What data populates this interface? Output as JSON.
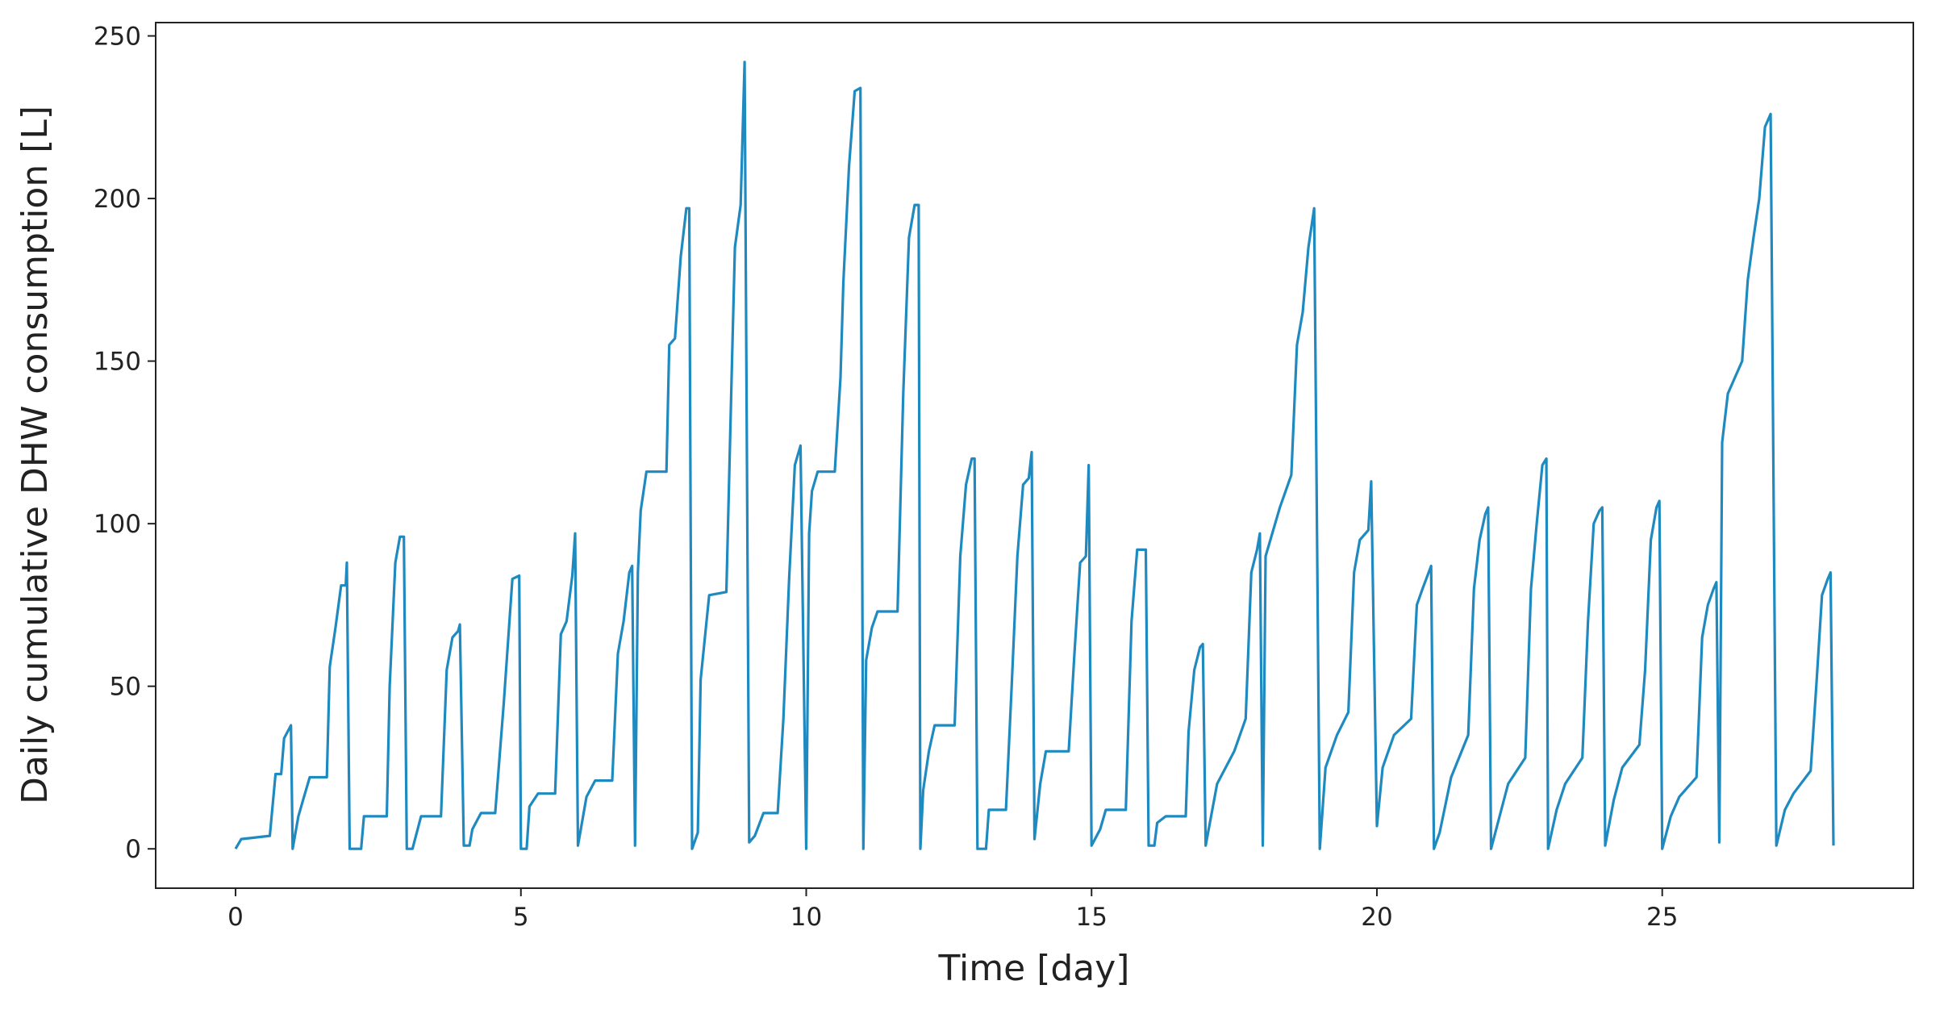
{
  "chart_data": {
    "type": "line",
    "xlabel": "Time [day]",
    "ylabel": "Daily cumulative DHW consumption [L]",
    "xlim": [
      -1.4,
      29.4
    ],
    "ylim": [
      -12.1,
      254.1
    ],
    "xticks": [
      0,
      5,
      10,
      15,
      20,
      25
    ],
    "yticks": [
      0,
      50,
      100,
      150,
      200,
      250
    ],
    "grid": false,
    "x": [
      0,
      0.1,
      0.6,
      0.7,
      0.8,
      0.85,
      0.97,
      1.0,
      1.1,
      1.2,
      1.3,
      1.6,
      1.65,
      1.75,
      1.85,
      1.93,
      1.95,
      2.0,
      2.2,
      2.25,
      2.65,
      2.7,
      2.8,
      2.88,
      2.95,
      3.0,
      3.1,
      3.25,
      3.6,
      3.7,
      3.8,
      3.9,
      3.93,
      4.0,
      4.1,
      4.15,
      4.3,
      4.55,
      4.7,
      4.85,
      4.97,
      5.0,
      5.1,
      5.15,
      5.3,
      5.6,
      5.7,
      5.8,
      5.9,
      5.95,
      6.0,
      6.15,
      6.3,
      6.6,
      6.7,
      6.8,
      6.9,
      6.95,
      7.0,
      7.05,
      7.1,
      7.2,
      7.55,
      7.6,
      7.7,
      7.8,
      7.9,
      7.95,
      8.0,
      8.1,
      8.15,
      8.3,
      8.6,
      8.7,
      8.75,
      8.85,
      8.92,
      9.0,
      9.1,
      9.25,
      9.5,
      9.6,
      9.7,
      9.8,
      9.9,
      10.0,
      10.05,
      10.1,
      10.2,
      10.5,
      10.6,
      10.65,
      10.75,
      10.85,
      10.95,
      11.0,
      11.05,
      11.15,
      11.25,
      11.6,
      11.7,
      11.8,
      11.9,
      11.97,
      12.0,
      12.05,
      12.15,
      12.25,
      12.6,
      12.7,
      12.8,
      12.9,
      12.95,
      13.0,
      13.15,
      13.2,
      13.5,
      13.6,
      13.7,
      13.8,
      13.9,
      13.95,
      14.0,
      14.1,
      14.2,
      14.6,
      14.7,
      14.8,
      14.9,
      14.95,
      15.0,
      15.15,
      15.25,
      15.6,
      15.7,
      15.8,
      15.95,
      16.0,
      16.1,
      16.15,
      16.3,
      16.65,
      16.7,
      16.8,
      16.9,
      16.95,
      17.0,
      17.2,
      17.5,
      17.7,
      17.8,
      17.9,
      17.95,
      18.0,
      18.05,
      18.3,
      18.5,
      18.6,
      18.7,
      18.8,
      18.9,
      19.0,
      19.1,
      19.3,
      19.5,
      19.6,
      19.7,
      19.85,
      19.9,
      20.0,
      20.1,
      20.3,
      20.6,
      20.7,
      20.8,
      20.95,
      21.0,
      21.1,
      21.3,
      21.6,
      21.7,
      21.8,
      21.9,
      21.95,
      22.0,
      22.15,
      22.3,
      22.6,
      22.7,
      22.8,
      22.9,
      22.97,
      23.0,
      23.15,
      23.3,
      23.6,
      23.7,
      23.8,
      23.9,
      23.95,
      24.0,
      24.15,
      24.3,
      24.6,
      24.7,
      24.8,
      24.9,
      24.95,
      25.0,
      25.15,
      25.3,
      25.6,
      25.7,
      25.8,
      25.9,
      25.95,
      26.0,
      26.05,
      26.15,
      26.4,
      26.5,
      26.6,
      26.7,
      26.8,
      26.9,
      27.0,
      27.15,
      27.3,
      27.6,
      27.7,
      27.8,
      27.9,
      27.95,
      28.0
    ],
    "series": [
      {
        "color": "#1f8ac0",
        "values": [
          0,
          3,
          4,
          23,
          23,
          34,
          38,
          0,
          10,
          16,
          22,
          22,
          56,
          68,
          81,
          81,
          88,
          0,
          0,
          10,
          10,
          50,
          88,
          96,
          96,
          0,
          0,
          10,
          10,
          55,
          65,
          67,
          69,
          1,
          1,
          6,
          11,
          11,
          45,
          83,
          84,
          0,
          0,
          13,
          17,
          17,
          66,
          70,
          84,
          97,
          1,
          16,
          21,
          21,
          60,
          70,
          85,
          87,
          1,
          85,
          104,
          116,
          116,
          155,
          157,
          182,
          197,
          197,
          0,
          5,
          52,
          78,
          79,
          150,
          185,
          198,
          242,
          2,
          4,
          11,
          11,
          40,
          83,
          118,
          124,
          0,
          97,
          110,
          116,
          116,
          145,
          174,
          210,
          233,
          234,
          0,
          58,
          68,
          73,
          73,
          140,
          188,
          198,
          198,
          0,
          18,
          30,
          38,
          38,
          90,
          112,
          120,
          120,
          0,
          0,
          12,
          12,
          50,
          90,
          112,
          114,
          122,
          3,
          20,
          30,
          30,
          60,
          88,
          90,
          118,
          1,
          6,
          12,
          12,
          70,
          92,
          92,
          1,
          1,
          8,
          10,
          10,
          36,
          55,
          62,
          63,
          1,
          20,
          30,
          40,
          85,
          92,
          97,
          1,
          90,
          105,
          115,
          155,
          165,
          185,
          197,
          0,
          25,
          35,
          42,
          85,
          95,
          98,
          113,
          7,
          25,
          35,
          40,
          75,
          80,
          87,
          0,
          5,
          22,
          35,
          80,
          95,
          103,
          105,
          0,
          10,
          20,
          28,
          80,
          100,
          118,
          120,
          0,
          12,
          20,
          28,
          70,
          100,
          104,
          105,
          1,
          15,
          25,
          32,
          55,
          95,
          105,
          107,
          0,
          10,
          16,
          22,
          65,
          75,
          80,
          82,
          2,
          125,
          140,
          150,
          175,
          188,
          200,
          222,
          226,
          1,
          12,
          17,
          24,
          50,
          78,
          83,
          85,
          1
        ]
      }
    ]
  }
}
